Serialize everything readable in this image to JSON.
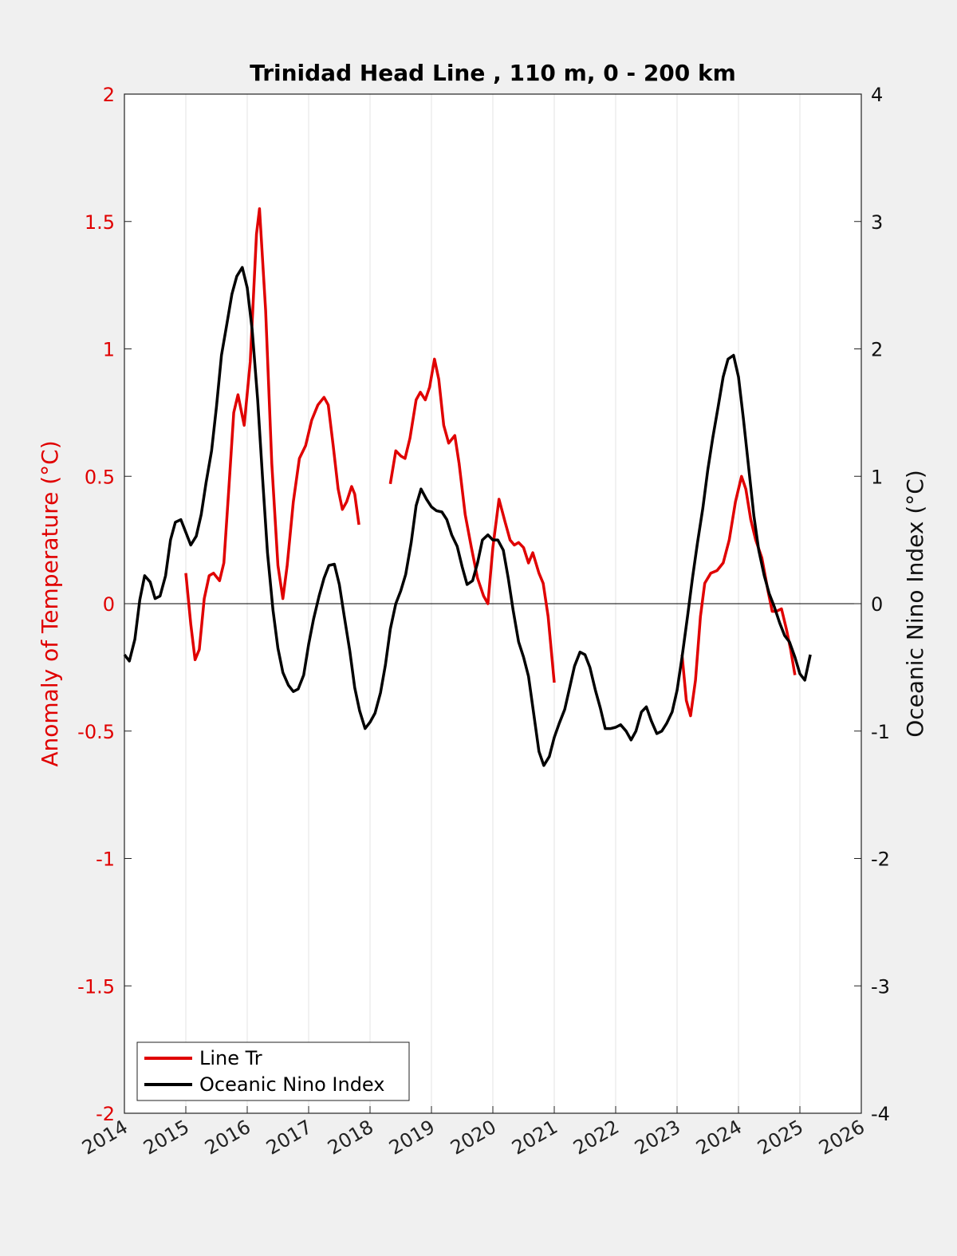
{
  "chart_data": {
    "type": "line",
    "title": "Trinidad Head Line , 110 m, 0 - 200 km",
    "xlabel": "",
    "ylabel": "Anomaly of Temperature (°C)",
    "ylabel_right": "Oceanic Nino Index (°C)",
    "xlim": [
      2014,
      2026
    ],
    "ylim": [
      -2,
      2
    ],
    "ylim_right": [
      -4,
      4
    ],
    "x_ticks": [
      "2014",
      "2015",
      "2016",
      "2017",
      "2018",
      "2019",
      "2020",
      "2021",
      "2022",
      "2023",
      "2024",
      "2025",
      "2026"
    ],
    "y_ticks_left": [
      "-2",
      "-1.5",
      "-1",
      "-0.5",
      "0",
      "0.5",
      "1",
      "1.5",
      "2"
    ],
    "y_ticks_right": [
      "-4",
      "-3",
      "-2",
      "-1",
      "0",
      "1",
      "2",
      "3",
      "4"
    ],
    "grid": "vertical",
    "legend_position": "bottom-left",
    "series": [
      {
        "name": "Line Tr",
        "color": "#e00000",
        "axis": "left",
        "segments": [
          [
            [
              2015.0,
              0.12
            ],
            [
              2015.08,
              -0.08
            ],
            [
              2015.15,
              -0.22
            ],
            [
              2015.22,
              -0.18
            ],
            [
              2015.3,
              0.02
            ],
            [
              2015.38,
              0.11
            ],
            [
              2015.45,
              0.12
            ],
            [
              2015.55,
              0.09
            ],
            [
              2015.62,
              0.16
            ],
            [
              2015.7,
              0.45
            ],
            [
              2015.78,
              0.75
            ],
            [
              2015.85,
              0.82
            ],
            [
              2015.95,
              0.7
            ],
            [
              2016.05,
              0.95
            ],
            [
              2016.15,
              1.45
            ],
            [
              2016.2,
              1.55
            ],
            [
              2016.3,
              1.15
            ],
            [
              2016.4,
              0.55
            ],
            [
              2016.5,
              0.15
            ],
            [
              2016.58,
              0.02
            ],
            [
              2016.65,
              0.15
            ],
            [
              2016.75,
              0.4
            ],
            [
              2016.85,
              0.57
            ],
            [
              2016.95,
              0.62
            ],
            [
              2017.05,
              0.72
            ],
            [
              2017.15,
              0.78
            ],
            [
              2017.25,
              0.81
            ],
            [
              2017.32,
              0.78
            ],
            [
              2017.4,
              0.62
            ],
            [
              2017.48,
              0.45
            ],
            [
              2017.55,
              0.37
            ],
            [
              2017.62,
              0.4
            ],
            [
              2017.7,
              0.46
            ],
            [
              2017.75,
              0.43
            ],
            [
              2017.82,
              0.31
            ]
          ],
          [
            [
              2018.33,
              0.47
            ],
            [
              2018.42,
              0.6
            ],
            [
              2018.5,
              0.58
            ],
            [
              2018.57,
              0.57
            ],
            [
              2018.65,
              0.65
            ],
            [
              2018.75,
              0.8
            ],
            [
              2018.82,
              0.83
            ],
            [
              2018.9,
              0.8
            ],
            [
              2018.97,
              0.85
            ],
            [
              2019.05,
              0.96
            ],
            [
              2019.12,
              0.88
            ],
            [
              2019.2,
              0.7
            ],
            [
              2019.28,
              0.63
            ],
            [
              2019.38,
              0.66
            ],
            [
              2019.45,
              0.55
            ],
            [
              2019.55,
              0.35
            ],
            [
              2019.65,
              0.22
            ],
            [
              2019.75,
              0.1
            ],
            [
              2019.85,
              0.03
            ],
            [
              2019.92,
              0.0
            ],
            [
              2020.0,
              0.22
            ],
            [
              2020.1,
              0.41
            ],
            [
              2020.2,
              0.32
            ],
            [
              2020.28,
              0.25
            ],
            [
              2020.35,
              0.23
            ],
            [
              2020.42,
              0.24
            ],
            [
              2020.5,
              0.22
            ],
            [
              2020.58,
              0.16
            ],
            [
              2020.65,
              0.2
            ],
            [
              2020.75,
              0.12
            ],
            [
              2020.82,
              0.08
            ],
            [
              2020.9,
              -0.05
            ],
            [
              2021.0,
              -0.31
            ]
          ],
          [
            [
              2023.08,
              -0.2
            ],
            [
              2023.15,
              -0.38
            ],
            [
              2023.22,
              -0.44
            ],
            [
              2023.3,
              -0.3
            ],
            [
              2023.38,
              -0.05
            ],
            [
              2023.45,
              0.08
            ],
            [
              2023.55,
              0.12
            ],
            [
              2023.65,
              0.13
            ],
            [
              2023.75,
              0.16
            ],
            [
              2023.85,
              0.25
            ],
            [
              2023.95,
              0.4
            ],
            [
              2024.05,
              0.5
            ],
            [
              2024.12,
              0.45
            ],
            [
              2024.2,
              0.33
            ],
            [
              2024.28,
              0.25
            ],
            [
              2024.38,
              0.18
            ],
            [
              2024.48,
              0.05
            ],
            [
              2024.55,
              -0.03
            ],
            [
              2024.62,
              -0.03
            ],
            [
              2024.7,
              -0.02
            ],
            [
              2024.78,
              -0.1
            ],
            [
              2024.85,
              -0.18
            ],
            [
              2024.92,
              -0.28
            ]
          ]
        ]
      },
      {
        "name": "Oceanic Nino Index",
        "color": "#000000",
        "axis": "right",
        "points": [
          [
            2014.0,
            -0.4
          ],
          [
            2014.08,
            -0.45
          ],
          [
            2014.17,
            -0.28
          ],
          [
            2014.25,
            0.03
          ],
          [
            2014.33,
            0.22
          ],
          [
            2014.42,
            0.17
          ],
          [
            2014.5,
            0.04
          ],
          [
            2014.58,
            0.06
          ],
          [
            2014.67,
            0.22
          ],
          [
            2014.75,
            0.5
          ],
          [
            2014.83,
            0.64
          ],
          [
            2014.92,
            0.66
          ],
          [
            2015.0,
            0.56
          ],
          [
            2015.08,
            0.46
          ],
          [
            2015.17,
            0.53
          ],
          [
            2015.25,
            0.7
          ],
          [
            2015.33,
            0.95
          ],
          [
            2015.42,
            1.2
          ],
          [
            2015.5,
            1.55
          ],
          [
            2015.58,
            1.95
          ],
          [
            2015.67,
            2.2
          ],
          [
            2015.75,
            2.43
          ],
          [
            2015.83,
            2.57
          ],
          [
            2015.92,
            2.64
          ],
          [
            2016.0,
            2.48
          ],
          [
            2016.08,
            2.15
          ],
          [
            2016.17,
            1.6
          ],
          [
            2016.25,
            0.98
          ],
          [
            2016.33,
            0.4
          ],
          [
            2016.42,
            -0.05
          ],
          [
            2016.5,
            -0.35
          ],
          [
            2016.58,
            -0.54
          ],
          [
            2016.67,
            -0.64
          ],
          [
            2016.75,
            -0.69
          ],
          [
            2016.83,
            -0.67
          ],
          [
            2016.92,
            -0.56
          ],
          [
            2017.0,
            -0.32
          ],
          [
            2017.08,
            -0.12
          ],
          [
            2017.17,
            0.06
          ],
          [
            2017.25,
            0.2
          ],
          [
            2017.33,
            0.3
          ],
          [
            2017.42,
            0.31
          ],
          [
            2017.5,
            0.15
          ],
          [
            2017.58,
            -0.1
          ],
          [
            2017.67,
            -0.37
          ],
          [
            2017.75,
            -0.66
          ],
          [
            2017.83,
            -0.84
          ],
          [
            2017.92,
            -0.98
          ],
          [
            2018.0,
            -0.93
          ],
          [
            2018.08,
            -0.86
          ],
          [
            2018.17,
            -0.7
          ],
          [
            2018.25,
            -0.48
          ],
          [
            2018.33,
            -0.2
          ],
          [
            2018.42,
            0.0
          ],
          [
            2018.5,
            0.1
          ],
          [
            2018.58,
            0.23
          ],
          [
            2018.67,
            0.48
          ],
          [
            2018.75,
            0.77
          ],
          [
            2018.83,
            0.9
          ],
          [
            2018.92,
            0.82
          ],
          [
            2019.0,
            0.76
          ],
          [
            2019.08,
            0.73
          ],
          [
            2019.17,
            0.72
          ],
          [
            2019.25,
            0.66
          ],
          [
            2019.33,
            0.54
          ],
          [
            2019.42,
            0.45
          ],
          [
            2019.5,
            0.29
          ],
          [
            2019.58,
            0.15
          ],
          [
            2019.67,
            0.18
          ],
          [
            2019.75,
            0.32
          ],
          [
            2019.83,
            0.5
          ],
          [
            2019.92,
            0.54
          ],
          [
            2020.0,
            0.5
          ],
          [
            2020.08,
            0.5
          ],
          [
            2020.17,
            0.42
          ],
          [
            2020.25,
            0.2
          ],
          [
            2020.33,
            -0.05
          ],
          [
            2020.42,
            -0.3
          ],
          [
            2020.5,
            -0.42
          ],
          [
            2020.58,
            -0.57
          ],
          [
            2020.67,
            -0.88
          ],
          [
            2020.75,
            -1.16
          ],
          [
            2020.83,
            -1.27
          ],
          [
            2020.92,
            -1.2
          ],
          [
            2021.0,
            -1.05
          ],
          [
            2021.08,
            -0.94
          ],
          [
            2021.17,
            -0.83
          ],
          [
            2021.25,
            -0.66
          ],
          [
            2021.33,
            -0.49
          ],
          [
            2021.42,
            -0.38
          ],
          [
            2021.5,
            -0.4
          ],
          [
            2021.58,
            -0.5
          ],
          [
            2021.67,
            -0.68
          ],
          [
            2021.75,
            -0.82
          ],
          [
            2021.83,
            -0.98
          ],
          [
            2021.92,
            -0.98
          ],
          [
            2022.0,
            -0.97
          ],
          [
            2022.08,
            -0.95
          ],
          [
            2022.17,
            -1.0
          ],
          [
            2022.25,
            -1.07
          ],
          [
            2022.33,
            -1.0
          ],
          [
            2022.42,
            -0.85
          ],
          [
            2022.5,
            -0.81
          ],
          [
            2022.58,
            -0.92
          ],
          [
            2022.67,
            -1.02
          ],
          [
            2022.75,
            -1.0
          ],
          [
            2022.83,
            -0.94
          ],
          [
            2022.92,
            -0.85
          ],
          [
            2023.0,
            -0.68
          ],
          [
            2023.08,
            -0.42
          ],
          [
            2023.17,
            -0.1
          ],
          [
            2023.25,
            0.2
          ],
          [
            2023.33,
            0.47
          ],
          [
            2023.42,
            0.75
          ],
          [
            2023.5,
            1.05
          ],
          [
            2023.58,
            1.3
          ],
          [
            2023.67,
            1.55
          ],
          [
            2023.75,
            1.78
          ],
          [
            2023.83,
            1.92
          ],
          [
            2023.92,
            1.95
          ],
          [
            2024.0,
            1.78
          ],
          [
            2024.08,
            1.45
          ],
          [
            2024.17,
            1.05
          ],
          [
            2024.25,
            0.69
          ],
          [
            2024.33,
            0.42
          ],
          [
            2024.42,
            0.22
          ],
          [
            2024.5,
            0.08
          ],
          [
            2024.58,
            -0.02
          ],
          [
            2024.67,
            -0.15
          ],
          [
            2024.75,
            -0.25
          ],
          [
            2024.83,
            -0.3
          ],
          [
            2024.92,
            -0.42
          ],
          [
            2025.0,
            -0.55
          ],
          [
            2025.08,
            -0.6
          ],
          [
            2025.17,
            -0.4
          ]
        ]
      }
    ]
  }
}
